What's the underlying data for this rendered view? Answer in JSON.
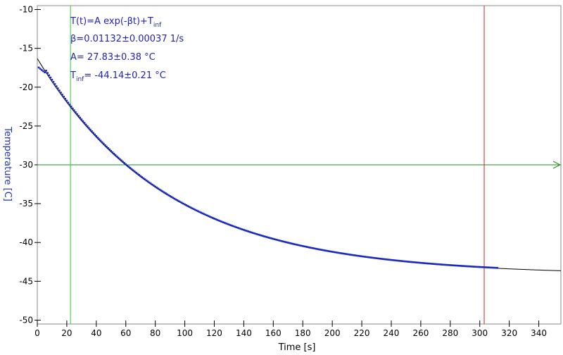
{
  "chart_data": {
    "type": "scatter",
    "title": "",
    "xlabel": "Time [s]",
    "ylabel": "Temperature [C]",
    "xlim": [
      0,
      355
    ],
    "ylim": [
      -50.5,
      -9.5
    ],
    "x_ticks": [
      0,
      20,
      40,
      60,
      80,
      100,
      120,
      140,
      160,
      180,
      200,
      220,
      240,
      260,
      280,
      300,
      320,
      340
    ],
    "y_ticks": [
      -10,
      -15,
      -20,
      -25,
      -30,
      -35,
      -40,
      -45,
      -50
    ],
    "grid": false,
    "colors": {
      "data": "#1a2bc0",
      "fit": "#000000",
      "start_marker": "#33cc33",
      "end_marker": "#cc2222",
      "reference_line": "#228822",
      "ylabel": "#2233bb"
    },
    "measured": {
      "x_range": [
        1,
        312
      ],
      "sample_step": 1,
      "model": "A*exp(-beta*t)+T_inf"
    },
    "fit": {
      "A": 27.83,
      "A_err": 0.38,
      "beta": 0.01132,
      "beta_err": 0.00037,
      "T_inf": -44.14,
      "T_inf_err": 0.21,
      "x_range": [
        0,
        355
      ]
    },
    "vertical_markers": [
      {
        "x": 22.5,
        "color": "green"
      },
      {
        "x": 303,
        "color": "red"
      }
    ],
    "horizontal_line": {
      "y": -30,
      "arrow": "right"
    },
    "annotations": {
      "formula_prefix": "T(t)=A exp(-βt)+T",
      "formula_sub": "inf",
      "beta_line": "β=0.01132±0.00037 1/s",
      "a_line": "A= 27.83±0.38 °C",
      "tinf_prefix": "T",
      "tinf_sub": "inf",
      "tinf_value": "= -44.14±0.21 °C"
    }
  }
}
